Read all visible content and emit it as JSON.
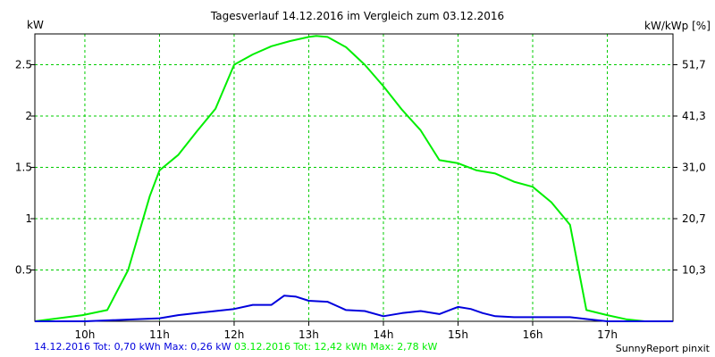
{
  "chart_data": {
    "type": "line",
    "title": "Tagesverlauf 14.12.2016 im Vergleich zum 03.12.2016",
    "ylabel_left": "kW",
    "ylabel_right": "kW/kWp [%]",
    "x_tick_labels": [
      "10h",
      "11h",
      "12h",
      "13h",
      "14h",
      "15h",
      "16h",
      "17h"
    ],
    "x_tick_values": [
      10,
      11,
      12,
      13,
      14,
      15,
      16,
      17
    ],
    "xlim": [
      9.33,
      17.88
    ],
    "y_tick_labels": [
      "0.5",
      "1",
      "1.5",
      "2",
      "2.5"
    ],
    "y_tick_values": [
      0.5,
      1,
      1.5,
      2,
      2.5
    ],
    "ylim": [
      0,
      2.8
    ],
    "y2_tick_labels": [
      "10,3",
      "20,7",
      "31,0",
      "41,3",
      "51,7"
    ],
    "grid": true,
    "series": [
      {
        "name": "03.12.2016",
        "color": "#00ee00",
        "x": [
          9.33,
          9.97,
          10.3,
          10.58,
          10.87,
          11.0,
          11.25,
          11.5,
          11.75,
          12.0,
          12.25,
          12.5,
          12.75,
          13.0,
          13.1,
          13.25,
          13.5,
          13.75,
          14.0,
          14.25,
          14.5,
          14.75,
          15.0,
          15.25,
          15.5,
          15.75,
          16.0,
          16.25,
          16.5,
          16.72,
          17.0,
          17.25,
          17.5,
          17.75,
          17.88
        ],
        "y": [
          0.0,
          0.06,
          0.11,
          0.5,
          1.22,
          1.47,
          1.62,
          1.85,
          2.07,
          2.5,
          2.6,
          2.68,
          2.73,
          2.77,
          2.78,
          2.77,
          2.67,
          2.5,
          2.29,
          2.06,
          1.86,
          1.57,
          1.54,
          1.47,
          1.44,
          1.36,
          1.31,
          1.16,
          0.94,
          0.11,
          0.06,
          0.02,
          0.0,
          0.0,
          0.0
        ]
      },
      {
        "name": "14.12.2016",
        "color": "#0000dd",
        "x": [
          9.33,
          10.0,
          10.33,
          10.67,
          11.0,
          11.25,
          11.5,
          11.75,
          12.0,
          12.25,
          12.5,
          12.67,
          12.83,
          13.0,
          13.25,
          13.5,
          13.75,
          14.0,
          14.25,
          14.5,
          14.75,
          15.0,
          15.17,
          15.33,
          15.5,
          15.75,
          16.0,
          16.25,
          16.5,
          16.75,
          17.0,
          17.25,
          17.5,
          17.88
        ],
        "y": [
          0.0,
          0.0,
          0.01,
          0.02,
          0.03,
          0.06,
          0.08,
          0.1,
          0.12,
          0.16,
          0.16,
          0.25,
          0.24,
          0.2,
          0.19,
          0.11,
          0.1,
          0.05,
          0.08,
          0.1,
          0.07,
          0.14,
          0.12,
          0.08,
          0.05,
          0.04,
          0.04,
          0.04,
          0.04,
          0.02,
          0.0,
          0.0,
          0.0,
          0.0
        ]
      }
    ]
  },
  "footer": {
    "blue_text": "14.12.2016 Tot: 0,70 kWh Max: 0,26 kW",
    "green_text": "03.12.2016 Tot: 12,42 kWh Max: 2,78 kW",
    "blue_color": "#0000dd",
    "green_color": "#00ee00",
    "credit": "SunnyReport pinxit"
  },
  "colors": {
    "grid": "#00cc00",
    "axis": "#000000"
  }
}
